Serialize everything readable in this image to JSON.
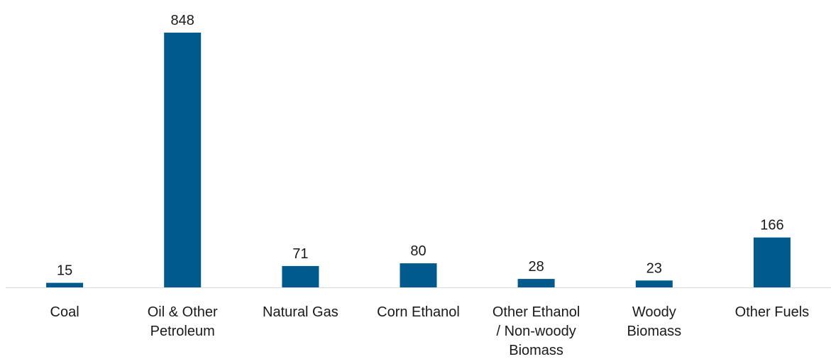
{
  "chart_data": {
    "type": "bar",
    "categories": [
      [
        "Coal"
      ],
      [
        "Oil & Other",
        "Petroleum"
      ],
      [
        "Natural Gas"
      ],
      [
        "Corn Ethanol"
      ],
      [
        "Other Ethanol",
        "/ Non-woody",
        "Biomass"
      ],
      [
        "Woody",
        "Biomass"
      ],
      [
        "Other Fuels"
      ]
    ],
    "series": [
      {
        "values": [
          15,
          848,
          71,
          80,
          28,
          23,
          166
        ]
      }
    ],
    "value_labels": [
      "15",
      "848",
      "71",
      "80",
      "28",
      "23",
      "166"
    ],
    "bar_color": "#005A8C",
    "axis_color": "#D9D9D9",
    "ylim": [
      0,
      848
    ],
    "grid": false,
    "legend": "none"
  }
}
